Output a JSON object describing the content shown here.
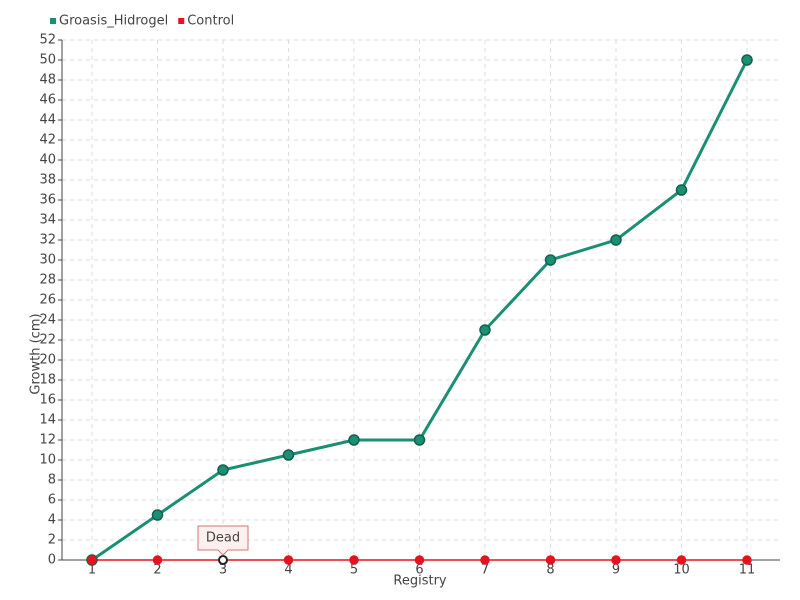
{
  "chart_data": {
    "type": "line",
    "x_label": "Registry",
    "y_label": "Growth (cm)",
    "categories": [
      "1",
      "2",
      "3",
      "4",
      "5",
      "6",
      "7",
      "8",
      "9",
      "10",
      "11"
    ],
    "series": [
      {
        "name": "Groasis_Hidrogel",
        "color": "#1b8f74",
        "values": [
          0,
          4.5,
          9,
          10.5,
          12,
          12,
          23,
          30,
          32,
          37,
          50
        ]
      },
      {
        "name": "Control",
        "color": "#e5121f",
        "values": [
          0,
          0,
          0,
          0,
          0,
          0,
          0,
          0,
          0,
          0,
          0
        ]
      }
    ],
    "annotation": {
      "text": "Dead",
      "series": 1,
      "index": 2
    },
    "ylim": [
      0,
      52
    ],
    "yticks": [
      0,
      2,
      4,
      6,
      8,
      10,
      12,
      14,
      16,
      18,
      20,
      22,
      24,
      26,
      28,
      30,
      32,
      34,
      36,
      38,
      40,
      42,
      44,
      46,
      48,
      50,
      52
    ],
    "grid": true,
    "legend": "top-left"
  }
}
